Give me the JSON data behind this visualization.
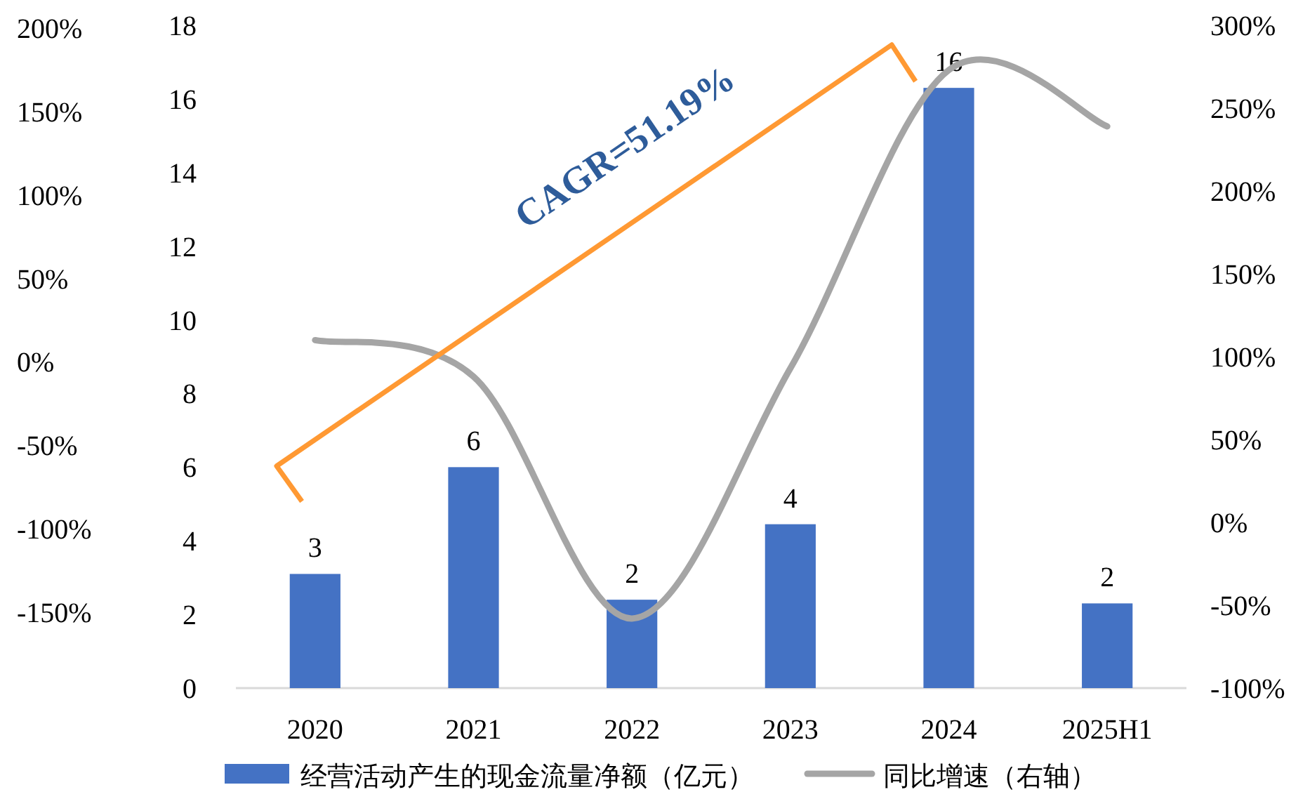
{
  "chart_data": {
    "type": "bar",
    "categories": [
      "2020",
      "2021",
      "2022",
      "2023",
      "2024",
      "2025H1"
    ],
    "series": [
      {
        "name": "经营活动产生的现金流量净额（亿元）",
        "color": "#4472c4",
        "values": [
          3.1,
          6.0,
          2.4,
          4.45,
          16.3,
          2.3
        ],
        "value_labels": [
          "3",
          "6",
          "2",
          "4",
          "16",
          "2"
        ]
      },
      {
        "name": "同比增速（右轴）",
        "type": "line",
        "axis": "y2",
        "color": "#a5a5a5",
        "values": [
          110,
          88,
          -58,
          93,
          273,
          239
        ]
      }
    ],
    "ylim": [
      0,
      18
    ],
    "yticks": [
      0,
      2,
      4,
      6,
      8,
      10,
      12,
      14,
      16,
      18
    ],
    "y2lim": [
      -100,
      300
    ],
    "y2ticks": [
      {
        "value": -100,
        "label": "-100%"
      },
      {
        "value": -50,
        "label": "-50%"
      },
      {
        "value": 0,
        "label": "0%"
      },
      {
        "value": 50,
        "label": "50%"
      },
      {
        "value": 100,
        "label": "100%"
      },
      {
        "value": 150,
        "label": "150%"
      },
      {
        "value": 200,
        "label": "200%"
      },
      {
        "value": 250,
        "label": "250%"
      },
      {
        "value": 300,
        "label": "300%"
      }
    ],
    "y3lim": [
      -150,
      200
    ],
    "y3ticks": [
      {
        "value": -150,
        "label": "-150%"
      },
      {
        "value": -100,
        "label": "-100%"
      },
      {
        "value": -50,
        "label": "-50%"
      },
      {
        "value": 0,
        "label": "0%"
      },
      {
        "value": 50,
        "label": "50%"
      },
      {
        "value": 100,
        "label": "100%"
      },
      {
        "value": 150,
        "label": "150%"
      },
      {
        "value": 200,
        "label": "200%"
      }
    ],
    "annotations": [
      "CAGR=51.19%"
    ],
    "legend": "bottom"
  }
}
